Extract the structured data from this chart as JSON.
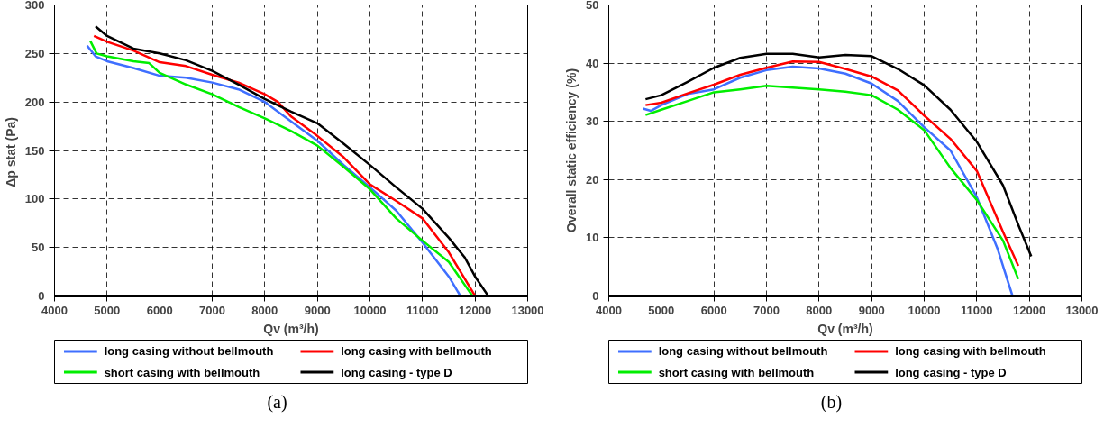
{
  "chart_data": [
    {
      "type": "line",
      "xlabel": "Qv (m³/h)",
      "ylabel": "Δp stat  (Pa)",
      "xlim": [
        4000,
        13000
      ],
      "xticks": [
        4000,
        5000,
        6000,
        7000,
        8000,
        9000,
        10000,
        11000,
        12000,
        13000
      ],
      "ylim": [
        0,
        300
      ],
      "yticks": [
        0,
        50,
        100,
        150,
        200,
        250,
        300
      ],
      "grid": true,
      "legend": "bottom",
      "line_style": "solid",
      "annotations": [
        "(a)"
      ],
      "series": [
        {
          "name": "long casing without bellmouth",
          "color": "#3f6fff",
          "x": [
            4620,
            4780,
            5000,
            5500,
            6000,
            6500,
            7000,
            7500,
            8000,
            8500,
            9000,
            9500,
            10000,
            10500,
            11000,
            11500,
            11720
          ],
          "values": [
            258,
            247,
            242,
            235,
            227,
            225,
            220,
            213,
            200,
            180,
            160,
            135,
            112,
            88,
            55,
            20,
            0
          ]
        },
        {
          "name": "long casing with bellmouth",
          "color": "#ff0000",
          "x": [
            4750,
            5000,
            5500,
            6000,
            6500,
            7000,
            7500,
            8000,
            8250,
            8500,
            9000,
            9500,
            10000,
            10500,
            11000,
            11500,
            12000
          ],
          "values": [
            268,
            262,
            253,
            241,
            237,
            228,
            220,
            208,
            200,
            185,
            165,
            143,
            115,
            98,
            80,
            45,
            0
          ]
        },
        {
          "name": "short casing with bellmouth",
          "color": "#00ee00",
          "x": [
            4680,
            4800,
            5000,
            5500,
            5800,
            6000,
            6500,
            7000,
            7500,
            8000,
            8500,
            9000,
            9500,
            10000,
            10500,
            11000,
            11500,
            11950
          ],
          "values": [
            263,
            250,
            247,
            242,
            240,
            230,
            218,
            208,
            195,
            183,
            170,
            155,
            133,
            110,
            80,
            57,
            35,
            0
          ]
        },
        {
          "name": "long casing - type D",
          "color": "#000000",
          "x": [
            4780,
            5000,
            5500,
            6000,
            6500,
            7000,
            7500,
            8000,
            8500,
            9000,
            9500,
            10000,
            10500,
            11000,
            11500,
            11800,
            12000,
            12250
          ],
          "values": [
            278,
            268,
            255,
            250,
            243,
            232,
            218,
            203,
            190,
            178,
            157,
            135,
            112,
            90,
            60,
            40,
            20,
            0
          ]
        }
      ]
    },
    {
      "type": "line",
      "xlabel": "Qv (m³/h)",
      "ylabel": "Overall static efficiency (%)",
      "xlim": [
        4000,
        13000
      ],
      "xticks": [
        4000,
        5000,
        6000,
        7000,
        8000,
        9000,
        10000,
        11000,
        12000,
        13000
      ],
      "ylim": [
        0,
        50
      ],
      "yticks": [
        0,
        10,
        20,
        30,
        40,
        50
      ],
      "grid": true,
      "legend": "bottom",
      "line_style": "solid",
      "annotations": [
        "(b)"
      ],
      "series": [
        {
          "name": "long casing without bellmouth",
          "color": "#3f6fff",
          "x": [
            4650,
            4800,
            5000,
            5500,
            6000,
            6500,
            7000,
            7500,
            8000,
            8500,
            9000,
            9500,
            10000,
            10500,
            11000,
            11400,
            11680
          ],
          "values": [
            32.2,
            31.8,
            32.8,
            34.7,
            35.5,
            37.5,
            38.8,
            39.4,
            39.1,
            38.2,
            36.5,
            33.5,
            29,
            25,
            17,
            8,
            0
          ]
        },
        {
          "name": "long casing with bellmouth",
          "color": "#ff0000",
          "x": [
            4700,
            5000,
            5500,
            6000,
            6500,
            7000,
            7500,
            8000,
            8500,
            9000,
            9500,
            10000,
            10500,
            11000,
            11500,
            11790
          ],
          "values": [
            32.8,
            33.2,
            34.8,
            36.3,
            38,
            39.2,
            40.3,
            40.2,
            39,
            37.7,
            35.3,
            31,
            27,
            21.5,
            11,
            5.2
          ]
        },
        {
          "name": "short casing with bellmouth",
          "color": "#00ee00",
          "x": [
            4700,
            5000,
            5500,
            6000,
            6500,
            7000,
            7500,
            8000,
            8500,
            9000,
            9500,
            10000,
            10500,
            11000,
            11500,
            11790
          ],
          "values": [
            31.1,
            32,
            33.5,
            35,
            35.5,
            36.1,
            35.8,
            35.5,
            35.1,
            34.5,
            32,
            28.5,
            22,
            16.5,
            9.5,
            2.9
          ]
        },
        {
          "name": "long casing - type D",
          "color": "#000000",
          "x": [
            4700,
            5000,
            5500,
            6000,
            6500,
            7000,
            7500,
            8000,
            8500,
            9000,
            9500,
            10000,
            10500,
            11000,
            11500,
            11800,
            12036
          ],
          "values": [
            33.8,
            34.5,
            36.8,
            39.2,
            40.9,
            41.6,
            41.6,
            41,
            41.4,
            41.2,
            39,
            36.2,
            32,
            26.5,
            19,
            12,
            6.8
          ]
        }
      ]
    }
  ]
}
